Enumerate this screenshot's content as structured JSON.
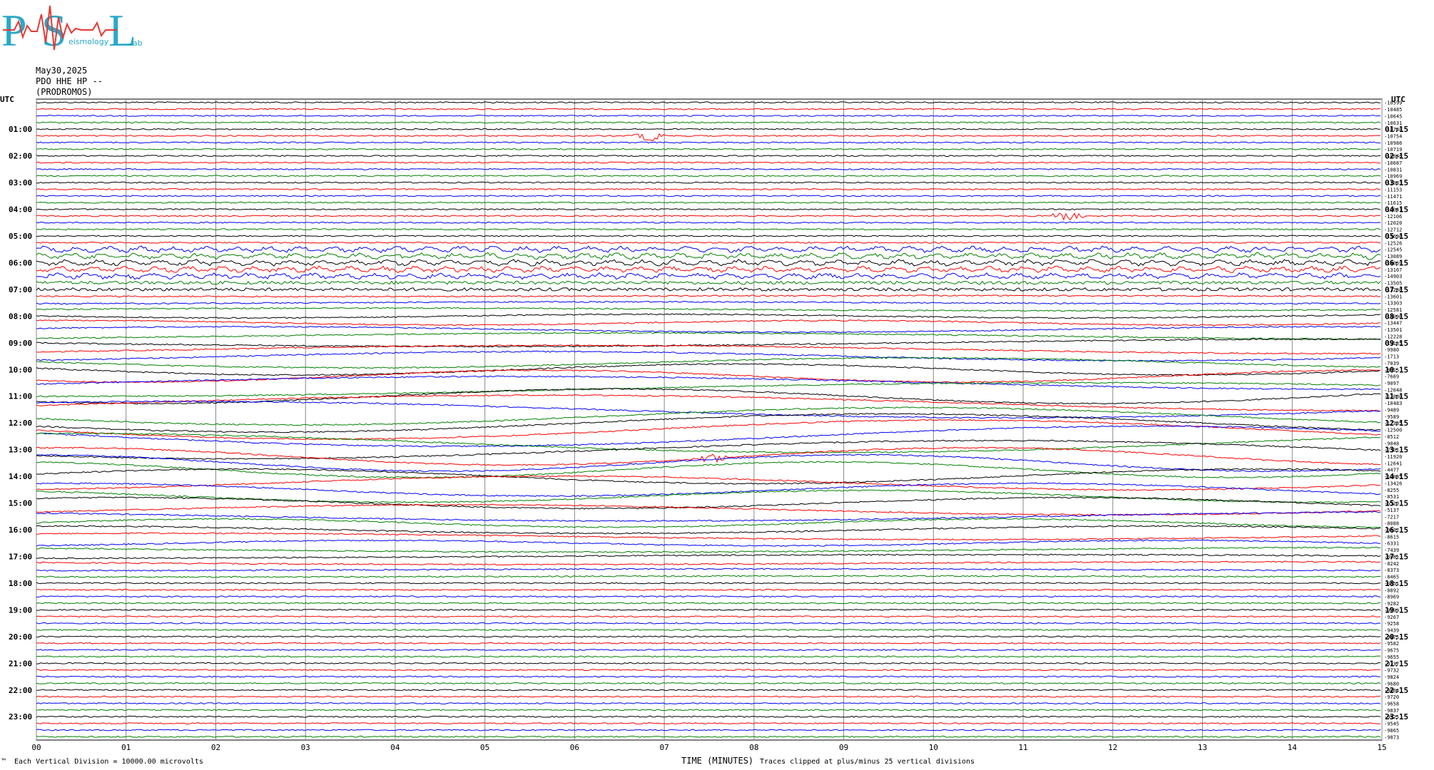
{
  "logo": {
    "letters": [
      "P",
      "S",
      "L"
    ],
    "word_mid": "eismology",
    "word_end": "ab",
    "colors": {
      "letters": "#2aa8c8",
      "wave": "#e53935"
    }
  },
  "header": {
    "date": "May30,2025",
    "station": "PDO HHE HP --",
    "site": "(PRODROMOS)"
  },
  "chart_data": {
    "type": "line",
    "title": "",
    "xlabel": "TIME (MINUTES)",
    "ylabel": "",
    "xlim": [
      0,
      15
    ],
    "x_ticks": [
      "00",
      "01",
      "02",
      "03",
      "04",
      "05",
      "06",
      "07",
      "08",
      "09",
      "10",
      "11",
      "12",
      "13",
      "14",
      "15"
    ],
    "grid": true,
    "rows_per_hour": 4,
    "total_rows": 96,
    "trace_colors": [
      "#000000",
      "#ff0000",
      "#0000ff",
      "#008000"
    ],
    "left_label_header": "UTC",
    "right_label_header": "UTC",
    "left_hour_labels": [
      "01:00",
      "02:00",
      "03:00",
      "04:00",
      "05:00",
      "06:00",
      "07:00",
      "08:00",
      "09:00",
      "10:00",
      "11:00",
      "12:00",
      "13:00",
      "14:00",
      "15:00",
      "16:00",
      "17:00",
      "18:00",
      "19:00",
      "20:00",
      "21:00",
      "22:00",
      "23:00"
    ],
    "right_hour_labels": [
      "01:15",
      "02:15",
      "03:15",
      "04:15",
      "05:15",
      "06:15",
      "07:15",
      "08:15",
      "09:15",
      "10:15",
      "11:15",
      "12:15",
      "13:15",
      "14:15",
      "15:15",
      "16:15",
      "17:15",
      "18:15",
      "19:15",
      "20:15",
      "21:15",
      "22:15",
      "23:15"
    ],
    "trace_offsets": [
      "-10599",
      "-10485",
      "-10645",
      "-10631",
      "-10740",
      "-10754",
      "-10986",
      "-10719",
      "-10646",
      "-10687",
      "-10831",
      "-10969",
      "-11083",
      "-11153",
      "-11471",
      "-11615",
      "-12041",
      "-12106",
      "-12020",
      "-12712",
      "-13696",
      "-12526",
      "-12545",
      "-13089",
      "-14069",
      "-13167",
      "-14903",
      "-13505",
      "-13286",
      "-13601",
      "-13303",
      "-12581",
      "-13096",
      "-13447",
      "-13501",
      "-12228",
      "-13185",
      "-9980",
      "-1713",
      "-7039",
      "-8815",
      "-7669",
      "-9097",
      "-12048",
      "-12080",
      "-10483",
      "-9489",
      "-9589",
      "-12385",
      "-12500",
      "-8512",
      "-9048",
      "-7501",
      "-11920",
      "-12641",
      "-4477",
      "-12085",
      "-13426",
      "-8255",
      "-8531",
      "-6520",
      "-5137",
      "-7217",
      "-8088",
      "-9332",
      "-8615",
      "-6331",
      "-7439",
      "-8081",
      "-8242",
      "-8373",
      "-8465",
      "-8651",
      "-8892",
      "-8969",
      "-9282",
      "-9299",
      "-9267",
      "-9258",
      "-9439",
      "-9475",
      "-9582",
      "-9675",
      "-9655",
      "-9737",
      "-9732",
      "-9824",
      "-9680",
      "-9864",
      "-9720",
      "-9658",
      "-9837",
      "-9925",
      "-9545",
      "-9865",
      "-9873"
    ],
    "events": [
      {
        "row": 5,
        "minute": 6.85,
        "label": ""
      },
      {
        "row": 17,
        "minute": 11.5,
        "label": ""
      },
      {
        "row": 53,
        "minute": 7.55,
        "label": ""
      }
    ]
  },
  "footer": {
    "corner": "™",
    "division": "Each Vertical Division = 10000.00 microvolts",
    "xlabel": "TIME (MINUTES)",
    "clip": "Traces clipped at plus/minus 25 vertical divisions"
  }
}
